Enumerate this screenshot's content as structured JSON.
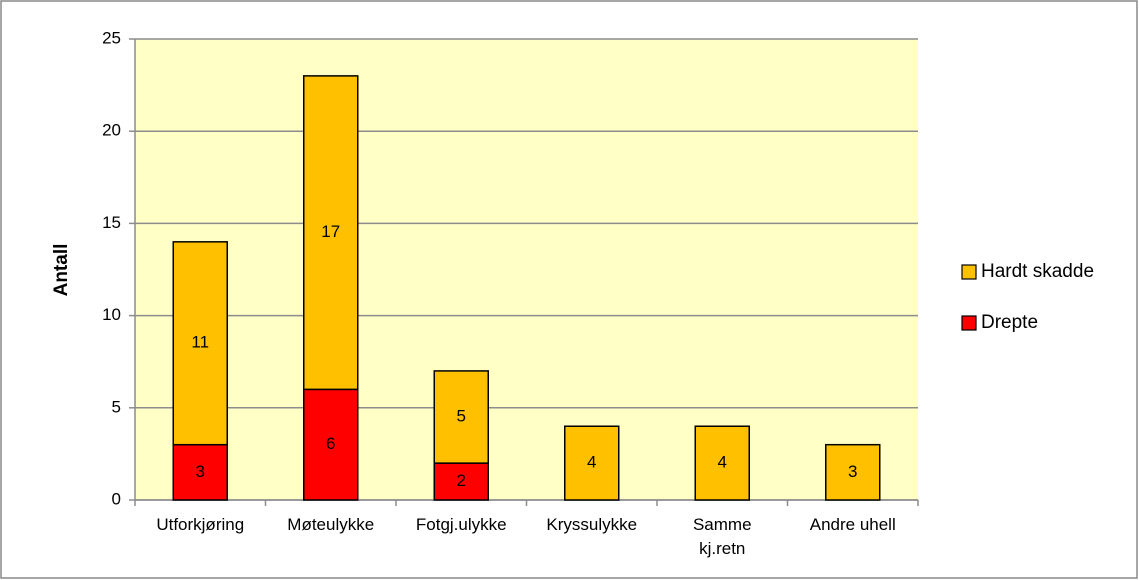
{
  "chart_data": {
    "type": "bar",
    "stacked": true,
    "y_label": "Antall",
    "categories": [
      "Utforkjøring",
      "Møteulykke",
      "Fotgj.ulykke",
      "Kryssulykke",
      "Samme\nkj.retn",
      "Andre uhell"
    ],
    "series": [
      {
        "name": "Drepte",
        "color": "#ff0000",
        "values": [
          3,
          6,
          2,
          0,
          0,
          0
        ]
      },
      {
        "name": "Hardt skadde",
        "color": "#ffc000",
        "values": [
          11,
          17,
          5,
          4,
          4,
          3
        ]
      }
    ],
    "ylim": [
      0,
      25
    ],
    "yticks": [
      0,
      5,
      10,
      15,
      20,
      25
    ],
    "grid": true,
    "legend": "right"
  }
}
